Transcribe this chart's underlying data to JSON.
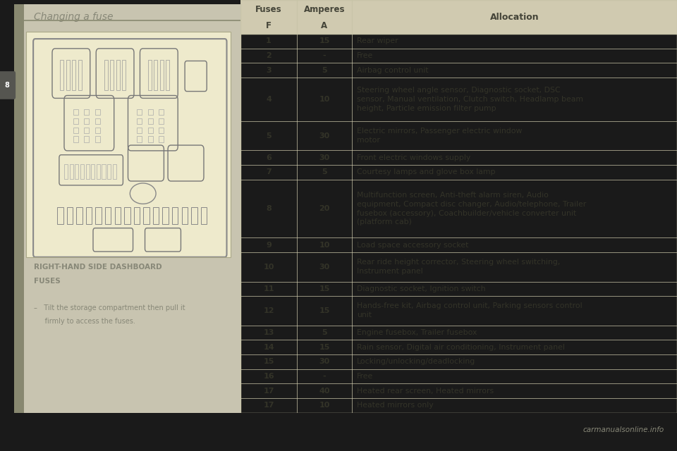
{
  "page_bg": "#1a1a1a",
  "left_panel_bg": "#c8c4b0",
  "content_bg": "#eeeacc",
  "table_bg": "#e8e4c8",
  "header_bg": "#d0cab0",
  "title_text": "Changing a fuse",
  "title_color": "#888878",
  "section_title_line1": "RIGHT-HAND SIDE DASHBOARD",
  "section_title_line2": "FUSES",
  "section_title_color": "#888878",
  "bullet_text_line1": "–   Tilt the storage compartment then pull it",
  "bullet_text_line2": "     firmly to access the fuses.",
  "bullet_color": "#888878",
  "col_headers": [
    "Fuses\nF",
    "Amperes\nA",
    "Allocation"
  ],
  "rows": [
    [
      "1",
      "15",
      "Rear wiper"
    ],
    [
      "2",
      "-",
      "Free"
    ],
    [
      "3",
      "5",
      "Airbag control unit"
    ],
    [
      "4",
      "10",
      "Steering wheel angle sensor, Diagnostic socket, DSC\nsensor, Manual ventilation, Clutch switch, Headlamp beam\nheight, Particle emission filter pump"
    ],
    [
      "5",
      "30",
      "Electric mirrors, Passenger electric window\nmotor"
    ],
    [
      "6",
      "30",
      "Front electric windows supply"
    ],
    [
      "7",
      "5",
      "Courtesy lamps and glove box lamp"
    ],
    [
      "8",
      "20",
      "Multifunction screen, Anti-theft alarm siren, Audio\nequipment, Compact disc changer, Audio/telephone, Trailer\nfusebox (accessory), Coachbuilder/vehicle converter unit\n(platform cab)"
    ],
    [
      "9",
      "10",
      "Load space accessory socket"
    ],
    [
      "10",
      "30",
      "Rear ride height corrector, Steering wheel switching,\nInstrument panel"
    ],
    [
      "11",
      "15",
      "Diagnostic socket, Ignition switch"
    ],
    [
      "12",
      "15",
      "Hands-free kit, Airbag control unit, Parking sensors control\nunit"
    ],
    [
      "13",
      "5",
      "Engine fusebox, Trailer fusebox"
    ],
    [
      "14",
      "15",
      "Rain sensor, Digital air conditioning, Instrument panel"
    ],
    [
      "15",
      "30",
      "Locking/unlocking/deadlocking"
    ],
    [
      "16",
      "-",
      "Free"
    ],
    [
      "17",
      "40",
      "Heated rear screen, Heated mirrors"
    ],
    [
      "17",
      "10",
      "Heated mirrors only"
    ]
  ],
  "watermark": "carmanualsonline.info",
  "page_num": "8",
  "divider_color": "#c8c4a8",
  "table_text_color": "#333328",
  "header_text_color": "#444438",
  "left_accent_color": "#888870",
  "title_line_color": "#888870"
}
